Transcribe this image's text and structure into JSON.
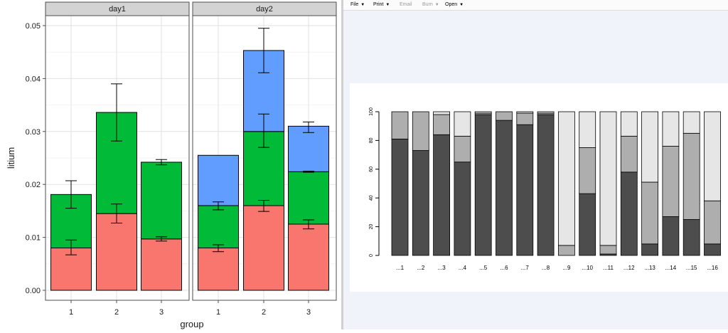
{
  "toolbar": {
    "items": [
      {
        "label": "File",
        "disabled": false
      },
      {
        "label": "Print",
        "disabled": false
      },
      {
        "label": "Email",
        "disabled": true
      },
      {
        "label": "Burn",
        "disabled": true
      },
      {
        "label": "Open",
        "disabled": false
      }
    ]
  },
  "chart_data": [
    {
      "type": "bar",
      "stacked": true,
      "facets": [
        "day1",
        "day2"
      ],
      "categories": [
        "1",
        "2",
        "3"
      ],
      "xlabel": "group",
      "ylabel": "litium",
      "ylim": [
        0,
        0.053
      ],
      "yticks": [
        "0.00",
        "0.01",
        "0.02",
        "0.03",
        "0.04",
        "0.05"
      ],
      "colors": [
        "#f8766d",
        "#00ba38",
        "#619cff"
      ],
      "grid": true,
      "series": [
        {
          "values": {
            "day1": [
              0.008,
              0.0145,
              0.0097
            ],
            "day2": [
              0.008,
              0.016,
              0.0125
            ]
          },
          "errors": {
            "day1": [
              [
                0.0067,
                0.0095
              ],
              [
                0.0127,
                0.0163
              ],
              [
                0.0093,
                0.0101
              ]
            ],
            "day2": [
              [
                0.0073,
                0.0086
              ],
              [
                0.0149,
                0.017
              ],
              [
                0.0116,
                0.0133
              ]
            ]
          }
        },
        {
          "values": {
            "day1": [
              0.0101,
              0.0191,
              0.0145
            ],
            "day2": [
              0.008,
              0.014,
              0.0099
            ]
          },
          "errors": {
            "day1": [
              [
                0.0155,
                0.0207
              ],
              [
                0.0282,
                0.039
              ],
              [
                0.0237,
                0.0247
              ]
            ],
            "day2": [
              [
                0.0152,
                0.0167
              ],
              [
                0.027,
                0.0333
              ],
              [
                0.0223,
                0.0225
              ]
            ]
          }
        },
        {
          "values": {
            "day1": [
              0,
              0,
              0
            ],
            "day2": [
              0.0095,
              0.0153,
              0.0086
            ]
          },
          "errors": {
            "day1": [
              null,
              null,
              null
            ],
            "day2": [
              null,
              [
                0.0411,
                0.0495
              ],
              [
                0.0298,
                0.0318
              ]
            ]
          }
        }
      ]
    },
    {
      "type": "bar",
      "stacked": true,
      "categories": [
        "...1",
        "...2",
        "...3",
        "...4",
        "...5",
        "...6",
        "...7",
        "...8",
        "...9",
        "...10",
        "...11",
        "...12",
        "...13",
        "...14",
        "...15",
        "...16"
      ],
      "ylim": [
        0,
        100
      ],
      "yticks": [
        "0",
        "20",
        "40",
        "60",
        "80",
        "100"
      ],
      "colors": [
        "#4d4d4d",
        "#aeaeae",
        "#e6e6e6"
      ],
      "series": [
        {
          "values": [
            81,
            73,
            84,
            65,
            98,
            94,
            91,
            98,
            0,
            43,
            1,
            58,
            8,
            27,
            25,
            8
          ]
        },
        {
          "values": [
            19,
            27,
            14,
            18,
            1,
            6,
            8,
            1,
            7,
            32,
            6,
            25,
            43,
            49,
            60,
            30
          ]
        },
        {
          "values": [
            0,
            0,
            2,
            17,
            1,
            0,
            1,
            1,
            93,
            25,
            93,
            17,
            49,
            24,
            15,
            62
          ]
        }
      ]
    }
  ]
}
